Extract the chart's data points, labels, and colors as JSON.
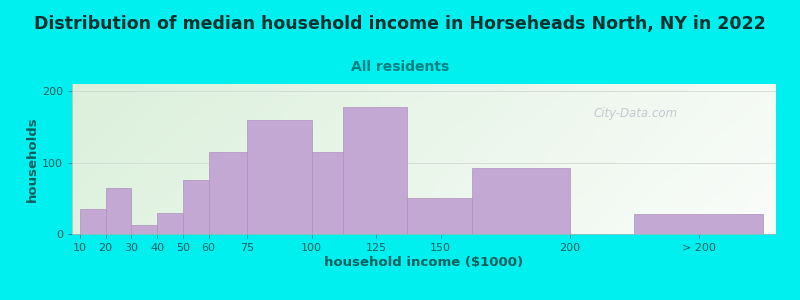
{
  "title": "Distribution of median household income in Horseheads North, NY in 2022",
  "subtitle": "All residents",
  "xlabel": "household income ($1000)",
  "ylabel": "households",
  "bar_color": "#C4A8D4",
  "bar_edge_color": "#B090C0",
  "background_color": "#00EFEF",
  "values": [
    35,
    65,
    13,
    30,
    75,
    115,
    160,
    115,
    178,
    50,
    93,
    28
  ],
  "bar_lefts": [
    10,
    20,
    30,
    40,
    50,
    60,
    75,
    100,
    112,
    137,
    162,
    225
  ],
  "bar_widths": [
    10,
    10,
    10,
    10,
    10,
    15,
    25,
    12,
    25,
    25,
    38,
    50
  ],
  "xtick_labels": [
    "10",
    "20",
    "30",
    "40",
    "50",
    "60",
    "75",
    "100",
    "125",
    "150",
    "200",
    "> 200"
  ],
  "xtick_positions": [
    10,
    20,
    30,
    40,
    50,
    60,
    75,
    100,
    125,
    150,
    200,
    250
  ],
  "xlim": [
    7,
    280
  ],
  "ylim": [
    0,
    210
  ],
  "yticks": [
    0,
    100,
    200
  ],
  "title_fontsize": 12.5,
  "subtitle_fontsize": 10,
  "axis_label_fontsize": 9.5,
  "tick_fontsize": 8,
  "watermark": "City-Data.com",
  "title_color": "#003030",
  "subtitle_color": "#008080",
  "axis_label_color": "#006060",
  "tick_color": "#006060",
  "grid_color": "#D0D8D0",
  "spine_color": "#B0B0B0"
}
